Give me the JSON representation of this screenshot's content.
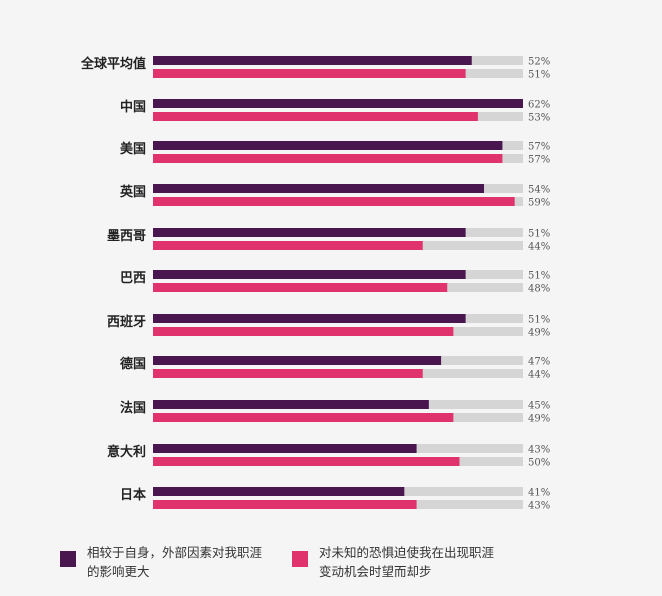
{
  "chart_data": {
    "type": "bar",
    "orientation": "horizontal",
    "categories": [
      "全球平均值",
      "中国",
      "美国",
      "英国",
      "墨西哥",
      "巴西",
      "西班牙",
      "德国",
      "法国",
      "意大利",
      "日本"
    ],
    "series": [
      {
        "name": "相较于自身，外部因素对我职涯的影响更大",
        "color": "#4a1650",
        "values": [
          52,
          62,
          57,
          54,
          51,
          51,
          51,
          47,
          45,
          43,
          41
        ],
        "labels": [
          "52%",
          "62%",
          "57%",
          "54%",
          "51%",
          "51%",
          "51%",
          "47%",
          "45%",
          "43%",
          "41%"
        ]
      },
      {
        "name": "对未知的恐惧迫使我在出现职涯变动机会时望而却步",
        "color": "#e0336e",
        "values": [
          51,
          53,
          57,
          59,
          44,
          48,
          49,
          44,
          49,
          50,
          43
        ],
        "labels": [
          "51%",
          "53%",
          "57%",
          "59%",
          "44%",
          "48%",
          "49%",
          "44%",
          "49%",
          "50%",
          "43%"
        ]
      }
    ],
    "track_color": "#d5d5d5",
    "legend_position": "bottom",
    "grid": false
  },
  "legend": [
    {
      "text": "相较于自身，外部因素对我职涯的影响更大",
      "color": "#4a1650"
    },
    {
      "text": "对未知的恐惧迫使我在出现职涯变动机会时望而却步",
      "color": "#e0336e"
    }
  ]
}
